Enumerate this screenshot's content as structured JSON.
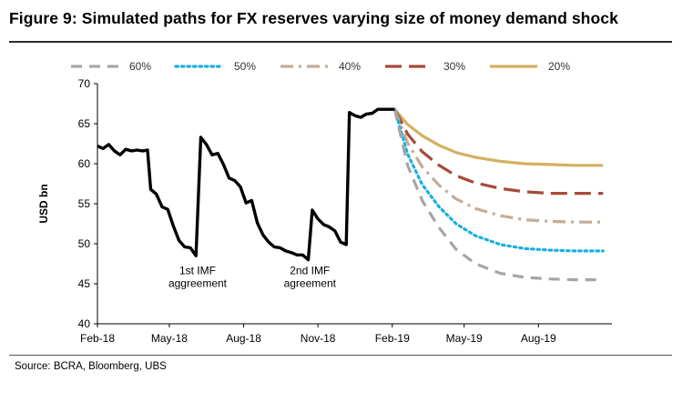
{
  "figure": {
    "title": "Figure 9: Simulated paths for FX reserves varying size of money demand shock",
    "source": "Source:  BCRA, Bloomberg, UBS"
  },
  "chart_data": {
    "type": "line",
    "ylabel": "USD bn",
    "ylim": [
      40,
      70
    ],
    "yticks": [
      40,
      45,
      50,
      55,
      60,
      65,
      70
    ],
    "xlim": [
      "2018-02-01",
      "2019-10-31"
    ],
    "xticks": [
      {
        "label": "Feb-18",
        "date": "2018-02-01"
      },
      {
        "label": "May-18",
        "date": "2018-05-01"
      },
      {
        "label": "Aug-18",
        "date": "2018-08-01"
      },
      {
        "label": "Nov-18",
        "date": "2018-11-01"
      },
      {
        "label": "Feb-19",
        "date": "2019-02-01"
      },
      {
        "label": "May-19",
        "date": "2019-05-01"
      },
      {
        "label": "Aug-19",
        "date": "2019-08-01"
      }
    ],
    "grid": false,
    "legend_position": "top",
    "historical": {
      "color": "#000000",
      "points": [
        [
          "2018-02-01",
          62.2
        ],
        [
          "2018-02-08",
          61.9
        ],
        [
          "2018-02-15",
          62.4
        ],
        [
          "2018-02-22",
          61.6
        ],
        [
          "2018-03-01",
          61.1
        ],
        [
          "2018-03-08",
          61.8
        ],
        [
          "2018-03-15",
          61.6
        ],
        [
          "2018-03-22",
          61.7
        ],
        [
          "2018-03-29",
          61.6
        ],
        [
          "2018-04-04",
          61.7
        ],
        [
          "2018-04-08",
          56.8
        ],
        [
          "2018-04-15",
          56.2
        ],
        [
          "2018-04-22",
          54.6
        ],
        [
          "2018-04-29",
          54.3
        ],
        [
          "2018-05-06",
          52.2
        ],
        [
          "2018-05-13",
          50.4
        ],
        [
          "2018-05-20",
          49.6
        ],
        [
          "2018-05-27",
          49.5
        ],
        [
          "2018-06-03",
          48.5
        ],
        [
          "2018-06-09",
          63.3
        ],
        [
          "2018-06-16",
          62.4
        ],
        [
          "2018-06-23",
          61.1
        ],
        [
          "2018-06-30",
          61.3
        ],
        [
          "2018-07-07",
          59.9
        ],
        [
          "2018-07-14",
          58.2
        ],
        [
          "2018-07-21",
          57.9
        ],
        [
          "2018-07-28",
          57.1
        ],
        [
          "2018-08-04",
          55.1
        ],
        [
          "2018-08-11",
          55.4
        ],
        [
          "2018-08-18",
          52.6
        ],
        [
          "2018-08-25",
          51.1
        ],
        [
          "2018-09-01",
          50.2
        ],
        [
          "2018-09-08",
          49.6
        ],
        [
          "2018-09-15",
          49.5
        ],
        [
          "2018-09-22",
          49.1
        ],
        [
          "2018-09-29",
          48.9
        ],
        [
          "2018-10-06",
          48.6
        ],
        [
          "2018-10-13",
          48.6
        ],
        [
          "2018-10-20",
          48.0
        ],
        [
          "2018-10-25",
          54.2
        ],
        [
          "2018-11-01",
          53.1
        ],
        [
          "2018-11-08",
          52.4
        ],
        [
          "2018-11-15",
          52.1
        ],
        [
          "2018-11-22",
          51.6
        ],
        [
          "2018-11-29",
          50.2
        ],
        [
          "2018-12-06",
          49.9
        ],
        [
          "2018-12-10",
          66.4
        ],
        [
          "2018-12-17",
          66.0
        ],
        [
          "2018-12-24",
          65.8
        ],
        [
          "2018-12-31",
          66.2
        ],
        [
          "2019-01-07",
          66.3
        ],
        [
          "2019-01-14",
          66.8
        ],
        [
          "2019-01-21",
          66.8
        ],
        [
          "2019-01-28",
          66.8
        ],
        [
          "2019-02-04",
          66.8
        ]
      ]
    },
    "series": [
      {
        "name": "60%",
        "color": "#a6a6a6",
        "dash": "dash",
        "values": [
          [
            "2019-02-04",
            66.8
          ],
          [
            "2019-02-20",
            59.8
          ],
          [
            "2019-03-10",
            55.4
          ],
          [
            "2019-03-31",
            52.0
          ],
          [
            "2019-04-21",
            49.3
          ],
          [
            "2019-05-15",
            47.5
          ],
          [
            "2019-06-15",
            46.3
          ],
          [
            "2019-07-15",
            45.8
          ],
          [
            "2019-08-15",
            45.6
          ],
          [
            "2019-09-15",
            45.5
          ],
          [
            "2019-10-20",
            45.5
          ]
        ]
      },
      {
        "name": "50%",
        "color": "#1ab0e0",
        "dash": "dot",
        "values": [
          [
            "2019-02-04",
            66.8
          ],
          [
            "2019-02-20",
            61.2
          ],
          [
            "2019-03-10",
            57.4
          ],
          [
            "2019-03-31",
            54.6
          ],
          [
            "2019-04-21",
            52.5
          ],
          [
            "2019-05-15",
            51.0
          ],
          [
            "2019-06-15",
            49.9
          ],
          [
            "2019-07-15",
            49.4
          ],
          [
            "2019-08-15",
            49.2
          ],
          [
            "2019-09-15",
            49.1
          ],
          [
            "2019-10-20",
            49.1
          ]
        ]
      },
      {
        "name": "40%",
        "color": "#c4ac96",
        "dash": "dashdot",
        "values": [
          [
            "2019-02-04",
            66.8
          ],
          [
            "2019-02-20",
            62.6
          ],
          [
            "2019-03-10",
            59.6
          ],
          [
            "2019-03-31",
            57.3
          ],
          [
            "2019-04-21",
            55.6
          ],
          [
            "2019-05-15",
            54.4
          ],
          [
            "2019-06-15",
            53.5
          ],
          [
            "2019-07-15",
            53.0
          ],
          [
            "2019-08-15",
            52.8
          ],
          [
            "2019-09-15",
            52.7
          ],
          [
            "2019-10-20",
            52.7
          ]
        ]
      },
      {
        "name": "30%",
        "color": "#a84a3a",
        "dash": "longdash",
        "values": [
          [
            "2019-02-04",
            66.8
          ],
          [
            "2019-02-20",
            63.7
          ],
          [
            "2019-03-10",
            61.5
          ],
          [
            "2019-03-31",
            59.8
          ],
          [
            "2019-04-21",
            58.5
          ],
          [
            "2019-05-15",
            57.6
          ],
          [
            "2019-06-15",
            56.9
          ],
          [
            "2019-07-15",
            56.5
          ],
          [
            "2019-08-15",
            56.3
          ],
          [
            "2019-09-15",
            56.3
          ],
          [
            "2019-10-20",
            56.3
          ]
        ]
      },
      {
        "name": "20%",
        "color": "#d2b160",
        "dash": "solid",
        "values": [
          [
            "2019-02-04",
            66.8
          ],
          [
            "2019-02-20",
            64.9
          ],
          [
            "2019-03-10",
            63.5
          ],
          [
            "2019-03-31",
            62.3
          ],
          [
            "2019-04-21",
            61.4
          ],
          [
            "2019-05-15",
            60.8
          ],
          [
            "2019-06-15",
            60.3
          ],
          [
            "2019-07-15",
            60.0
          ],
          [
            "2019-08-15",
            59.9
          ],
          [
            "2019-09-15",
            59.8
          ],
          [
            "2019-10-20",
            59.8
          ]
        ]
      }
    ],
    "annotations": [
      {
        "lines": [
          "1st IMF",
          "aggreement"
        ],
        "date": "2018-06-05",
        "value": 46.2
      },
      {
        "lines": [
          "2nd IMF",
          "agreement"
        ],
        "date": "2018-10-22",
        "value": 46.2
      }
    ]
  }
}
